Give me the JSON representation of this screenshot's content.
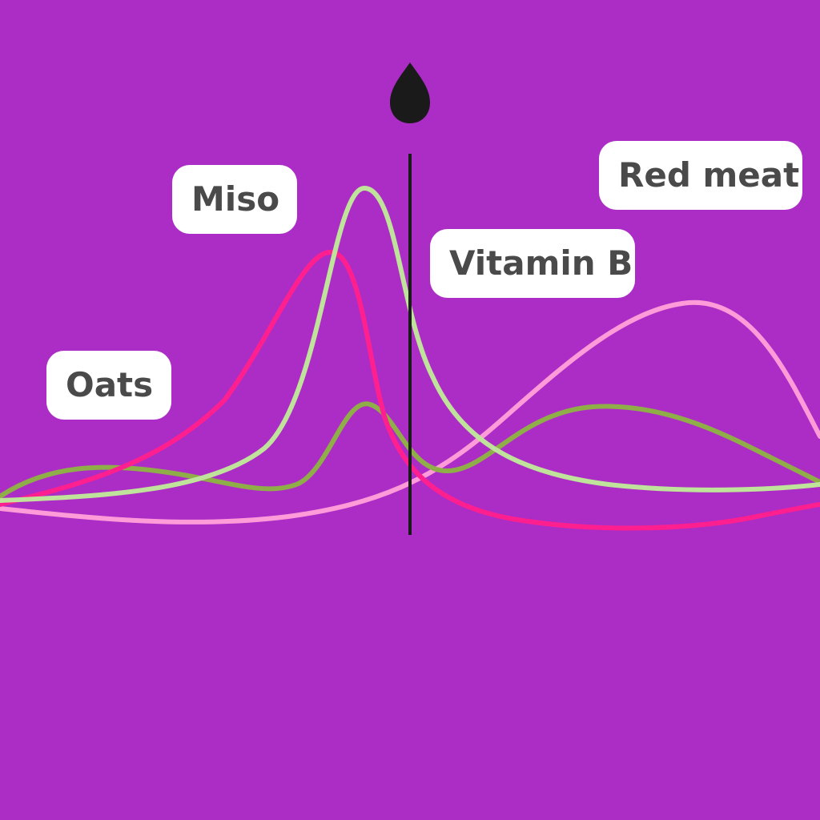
{
  "colors": {
    "background": "#ac2dc6",
    "label_bg": "#ffffff",
    "label_text": "#4a4a4a",
    "playhead": "#1a1a1a",
    "curve_light_green": "#bfe39a",
    "curve_olive_green": "#8fae48",
    "curve_hot_pink": "#ff1f8f",
    "curve_light_pink": "#ff9bd8"
  },
  "labels": {
    "miso": "Miso",
    "vitamin_b": "Vitamin B",
    "red_meat": "Red meat",
    "oats": "Oats"
  },
  "icons": {
    "playhead_marker": "drop-icon"
  }
}
